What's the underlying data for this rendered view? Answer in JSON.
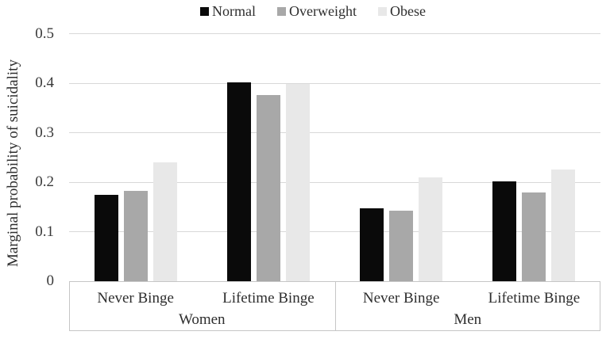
{
  "legend": {
    "items": [
      {
        "label": "Normal",
        "color": "#0a0a0a"
      },
      {
        "label": "Overweight",
        "color": "#a8a8a8"
      },
      {
        "label": "Obese",
        "color": "#e8e8e8"
      }
    ]
  },
  "chart_data": {
    "type": "bar",
    "title": "",
    "xlabel": "",
    "ylabel": "Marginal probability of suicidality",
    "ylim": [
      0,
      0.5
    ],
    "yticks": [
      "0",
      "0.1",
      "0.2",
      "0.3",
      "0.4",
      "0.5"
    ],
    "grid": true,
    "legend_position": "top",
    "group_labels": [
      "Women",
      "Men"
    ],
    "categories": [
      "Never Binge",
      "Lifetime Binge",
      "Never Binge",
      "Lifetime Binge"
    ],
    "series": [
      {
        "name": "Normal",
        "color": "#0a0a0a",
        "values": [
          0.175,
          0.402,
          0.147,
          0.201
        ]
      },
      {
        "name": "Overweight",
        "color": "#a8a8a8",
        "values": [
          0.183,
          0.376,
          0.143,
          0.179
        ]
      },
      {
        "name": "Obese",
        "color": "#e8e8e8",
        "values": [
          0.24,
          0.399,
          0.21,
          0.225
        ]
      }
    ]
  }
}
